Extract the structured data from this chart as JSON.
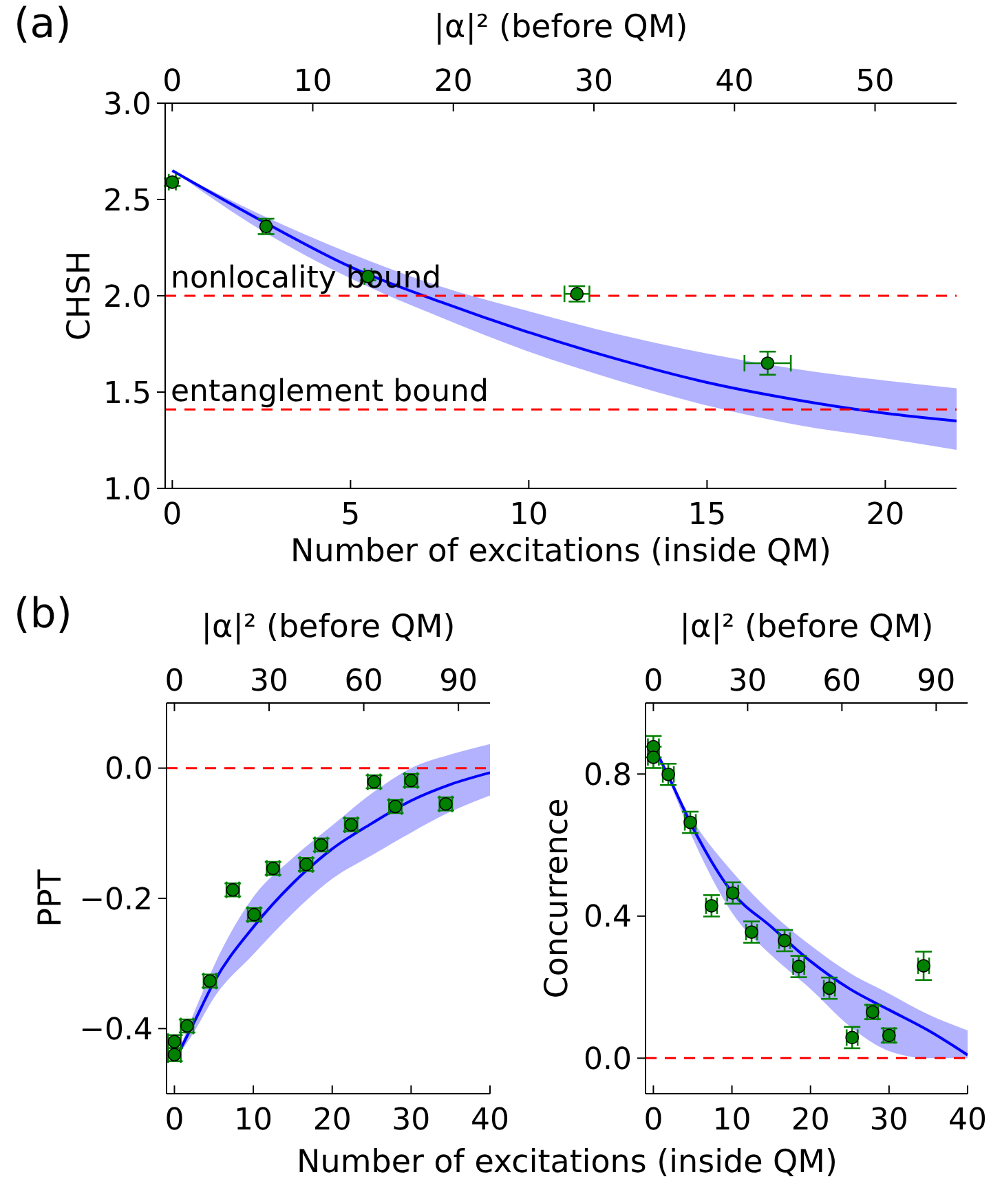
{
  "chart_data": [
    {
      "type": "scatter",
      "title": "(a)",
      "xlabel": "Number of excitations (inside QM)",
      "ylabel": "CHSH",
      "x2label": "|α|² (before QM)",
      "xlim": [
        -0.2,
        22
      ],
      "xticks": [
        0,
        5,
        10,
        15,
        20
      ],
      "x2lim": [
        -0.5,
        55.8
      ],
      "x2ticks": [
        0,
        10,
        20,
        30,
        40,
        50
      ],
      "ylim": [
        1.0,
        3.0
      ],
      "yticks": [
        {
          "value": 1.0,
          "label": "1.0"
        },
        {
          "value": 1.5,
          "label": "1.5"
        },
        {
          "value": 2.0,
          "label": "2.0"
        },
        {
          "value": 2.5,
          "label": "2.5"
        },
        {
          "value": 3.0,
          "label": "3.0"
        }
      ],
      "ref_lines": [
        {
          "axis": "y",
          "value": 2.0,
          "label": "nonlocality bound",
          "color": "#ff0000",
          "line_style": "dashed"
        },
        {
          "axis": "y",
          "value": 1.41,
          "label": "entanglement bound",
          "color": "#ff0000",
          "line_style": "dashed"
        }
      ],
      "series": [
        {
          "type": "line",
          "color": "#0000ff",
          "x": [
            0,
            2.5,
            5,
            7.5,
            10,
            12.5,
            15,
            17.5,
            20,
            22
          ],
          "values": [
            2.65,
            2.39,
            2.15,
            1.97,
            1.81,
            1.67,
            1.55,
            1.46,
            1.39,
            1.35
          ],
          "lower": [
            2.65,
            2.34,
            2.09,
            1.89,
            1.71,
            1.56,
            1.43,
            1.33,
            1.26,
            1.2
          ],
          "upper": [
            2.65,
            2.42,
            2.22,
            2.05,
            1.92,
            1.8,
            1.7,
            1.62,
            1.56,
            1.52
          ]
        },
        {
          "type": "scatter",
          "marker": "circle",
          "color": "#008000",
          "x": [
            0,
            2.63,
            5.49,
            11.35,
            16.7
          ],
          "values": [
            2.59,
            2.36,
            2.1,
            2.01,
            1.65
          ],
          "errors": [
            0.02,
            0.04,
            0.02,
            0.04,
            0.06
          ],
          "xerrors": [
            0.1,
            0.1,
            0.1,
            0.35,
            0.65
          ]
        }
      ]
    },
    {
      "type": "scatter",
      "title": "(b)",
      "xlabel": "Number of excitations (inside QM)",
      "ylabel": "PPT",
      "x2label": "|α|² (before QM)",
      "xlim": [
        -1,
        40
      ],
      "xticks": [
        0,
        10,
        20,
        30,
        40
      ],
      "x2lim": [
        -2.5,
        100
      ],
      "x2ticks": [
        0,
        30,
        60,
        90
      ],
      "ylim": [
        -0.5,
        0.1
      ],
      "yticks": [
        {
          "value": -0.4,
          "label": "−0.4"
        },
        {
          "value": -0.2,
          "label": "−0.2"
        },
        {
          "value": 0,
          "label": "0.0"
        }
      ],
      "ref_lines": [
        {
          "axis": "y",
          "value": 0,
          "color": "#ff0000",
          "line_style": "dashed"
        }
      ],
      "series": [
        {
          "type": "line",
          "color": "#0000ff",
          "x": [
            0,
            2.5,
            5,
            10,
            15,
            20,
            25,
            30,
            35,
            40
          ],
          "values": [
            -0.45,
            -0.39,
            -0.329,
            -0.244,
            -0.177,
            -0.124,
            -0.085,
            -0.05,
            -0.025,
            -0.007
          ],
          "lower": [
            -0.45,
            -0.405,
            -0.353,
            -0.286,
            -0.223,
            -0.17,
            -0.134,
            -0.099,
            -0.067,
            -0.042
          ],
          "upper": [
            -0.45,
            -0.375,
            -0.304,
            -0.198,
            -0.138,
            -0.088,
            -0.039,
            0.0,
            0.021,
            0.037
          ]
        },
        {
          "type": "scatter",
          "marker": "circle",
          "color": "#008000",
          "x": [
            0,
            0,
            1.6,
            4.5,
            7.4,
            10.1,
            12.5,
            16.7,
            18.6,
            22.4,
            25.3,
            28.0,
            30.0,
            34.4
          ],
          "values": [
            -0.42,
            -0.44,
            -0.396,
            -0.327,
            -0.187,
            -0.225,
            -0.154,
            -0.148,
            -0.118,
            -0.087,
            -0.021,
            -0.059,
            -0.019,
            -0.055
          ],
          "errors": [
            0.01,
            0.01,
            0.01,
            0.01,
            0.01,
            0.01,
            0.01,
            0.01,
            0.01,
            0.01,
            0.01,
            0.01,
            0.01,
            0.01
          ],
          "xerrors": [
            0.8,
            0.8,
            0.8,
            0.8,
            0.8,
            0.8,
            0.8,
            0.8,
            0.8,
            0.8,
            0.8,
            0.8,
            0.8,
            0.8
          ]
        }
      ]
    },
    {
      "type": "scatter",
      "ylabel": "Concurrence",
      "x2label": "|α|² (before QM)",
      "xlim": [
        -1,
        40
      ],
      "xticks": [
        0,
        10,
        20,
        30,
        40
      ],
      "x2lim": [
        -2.5,
        100
      ],
      "x2ticks": [
        0,
        30,
        60,
        90
      ],
      "ylim": [
        -0.1,
        1.0
      ],
      "yticks": [
        {
          "value": 0,
          "label": "0.0"
        },
        {
          "value": 0.4,
          "label": "0.4"
        },
        {
          "value": 0.8,
          "label": "0.8"
        }
      ],
      "ref_lines": [
        {
          "axis": "y",
          "value": 0,
          "color": "#ff0000",
          "line_style": "dashed"
        }
      ],
      "series": [
        {
          "type": "line",
          "color": "#0000ff",
          "x": [
            0,
            2,
            5,
            10,
            15,
            20,
            25,
            30,
            35,
            40
          ],
          "values": [
            0.88,
            0.79,
            0.65,
            0.468,
            0.37,
            0.273,
            0.195,
            0.136,
            0.078,
            0.009
          ],
          "lower": [
            0.88,
            0.78,
            0.62,
            0.41,
            0.29,
            0.195,
            0.09,
            0.02,
            0,
            0
          ],
          "upper": [
            0.88,
            0.79,
            0.67,
            0.526,
            0.41,
            0.318,
            0.24,
            0.182,
            0.123,
            0.078
          ]
        },
        {
          "type": "scatter",
          "marker": "circle",
          "color": "#008000",
          "x": [
            0,
            0,
            1.9,
            4.7,
            7.4,
            10.1,
            12.5,
            16.7,
            18.5,
            22.4,
            25.3,
            27.9,
            30.0,
            34.4
          ],
          "values": [
            0.877,
            0.847,
            0.799,
            0.664,
            0.429,
            0.465,
            0.355,
            0.331,
            0.258,
            0.197,
            0.058,
            0.13,
            0.064,
            0.26
          ],
          "errors": [
            0.03,
            0.03,
            0.03,
            0.03,
            0.03,
            0.03,
            0.03,
            0.03,
            0.03,
            0.03,
            0.03,
            0.02,
            0.02,
            0.04
          ],
          "xerrors": [
            0.7,
            0.7,
            0.7,
            0.7,
            0.7,
            0.7,
            0.7,
            0.7,
            0.7,
            0.7,
            0.7,
            0.7,
            0.7,
            0.7
          ]
        }
      ]
    }
  ]
}
